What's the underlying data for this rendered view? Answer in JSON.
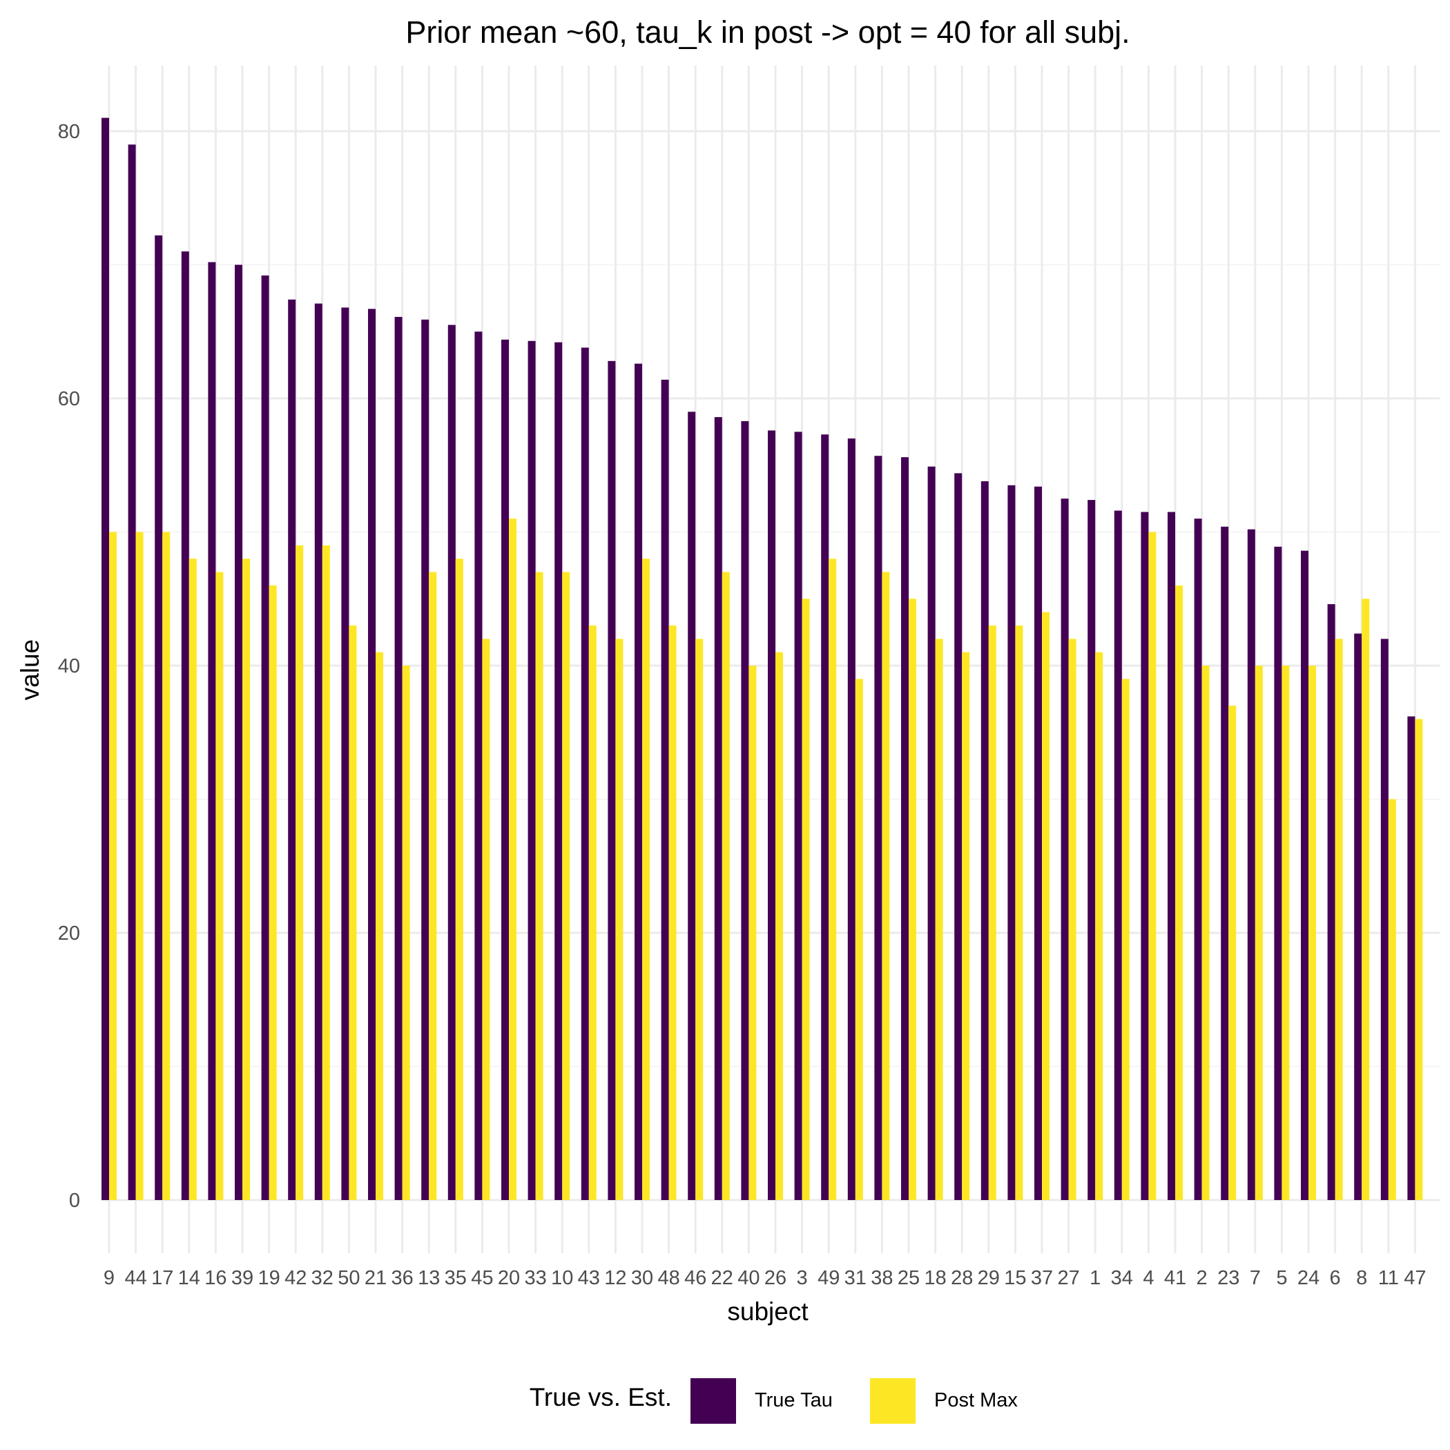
{
  "chart_data": {
    "type": "bar",
    "title": "Prior mean  ~60, tau_k in post -> opt = 40 for all subj.",
    "xlabel": "subject",
    "ylabel": "value",
    "ylim": [
      0,
      85
    ],
    "yticks": [
      0,
      20,
      40,
      60,
      80
    ],
    "grid": true,
    "categories": [
      "9",
      "44",
      "17",
      "14",
      "16",
      "39",
      "19",
      "42",
      "32",
      "50",
      "21",
      "36",
      "13",
      "35",
      "45",
      "20",
      "33",
      "10",
      "43",
      "12",
      "30",
      "48",
      "46",
      "22",
      "40",
      "26",
      "3",
      "49",
      "31",
      "38",
      "25",
      "18",
      "28",
      "29",
      "15",
      "37",
      "27",
      "1",
      "34",
      "4",
      "41",
      "2",
      "23",
      "7",
      "5",
      "24",
      "6",
      "8",
      "11",
      "47"
    ],
    "series": [
      {
        "name": "True Tau",
        "color": "#440154",
        "values": [
          81,
          79,
          72.2,
          71,
          70.2,
          70,
          69.2,
          67.4,
          67.1,
          66.8,
          66.7,
          66.1,
          65.9,
          65.5,
          65,
          64.4,
          64.3,
          64.2,
          63.8,
          62.8,
          62.6,
          61.4,
          59,
          58.6,
          58.3,
          57.6,
          57.5,
          57.3,
          57,
          55.7,
          55.6,
          54.9,
          54.4,
          53.8,
          53.5,
          53.4,
          52.5,
          52.4,
          51.6,
          51.5,
          51.5,
          51,
          50.4,
          50.2,
          48.9,
          48.6,
          44.6,
          42.4,
          42,
          36.2
        ]
      },
      {
        "name": "Post Max",
        "color": "#fde725",
        "values": [
          50,
          50,
          50,
          48,
          47,
          48,
          46,
          49,
          49,
          43,
          41,
          40,
          47,
          48,
          42,
          51,
          47,
          47,
          43,
          42,
          48,
          43,
          42,
          47,
          40,
          41,
          45,
          48,
          39,
          47,
          45,
          42,
          41,
          43,
          43,
          44,
          42,
          41,
          39,
          50,
          46,
          40,
          37,
          40,
          40,
          40,
          42,
          45,
          30,
          36
        ]
      }
    ],
    "legend": {
      "title": "True vs. Est.",
      "position": "bottom"
    }
  }
}
